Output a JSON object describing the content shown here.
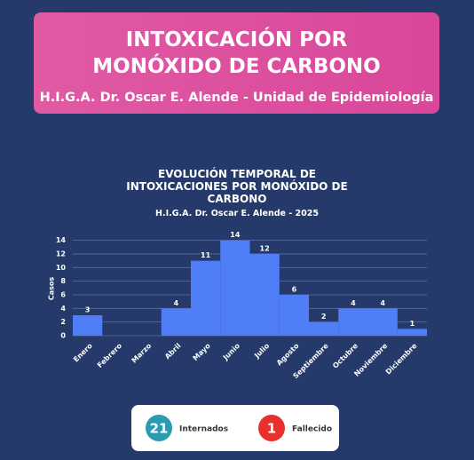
{
  "header": {
    "title_lines": [
      "INTOXICACIÓN POR",
      "MONÓXIDO DE CARBONO"
    ],
    "subtitle": "H.I.G.A. Dr. Oscar E. Alende - Unidad de Epidemiología"
  },
  "chart_data": {
    "type": "bar",
    "title_lines": [
      "EVOLUCIÓN TEMPORAL DE",
      "INTOXICACIONES POR MONÓXIDO DE",
      "CARBONO"
    ],
    "subtitle": "H.I.G.A. Dr. Oscar E. Alende - 2025",
    "y_label": "Casos",
    "categories": [
      "Enero",
      "Febrero",
      "Marzo",
      "Abril",
      "Mayo",
      "Junio",
      "Julio",
      "Agosto",
      "Septiembre",
      "Octubre",
      "Noviembre",
      "Diciembre"
    ],
    "values": [
      3,
      0,
      0,
      4,
      11,
      14,
      12,
      6,
      2,
      4,
      4,
      1
    ],
    "color": "#4f7ef7",
    "ylim": [
      0,
      14.6
    ],
    "yticks": [
      0,
      2,
      4,
      6,
      8,
      10,
      12,
      14
    ],
    "grid": true
  },
  "summary": [
    {
      "value": 21,
      "label": "Internados",
      "color": "#2a9bb0"
    },
    {
      "value": 1,
      "label": "Fallecido",
      "color": "#e8302e"
    }
  ]
}
